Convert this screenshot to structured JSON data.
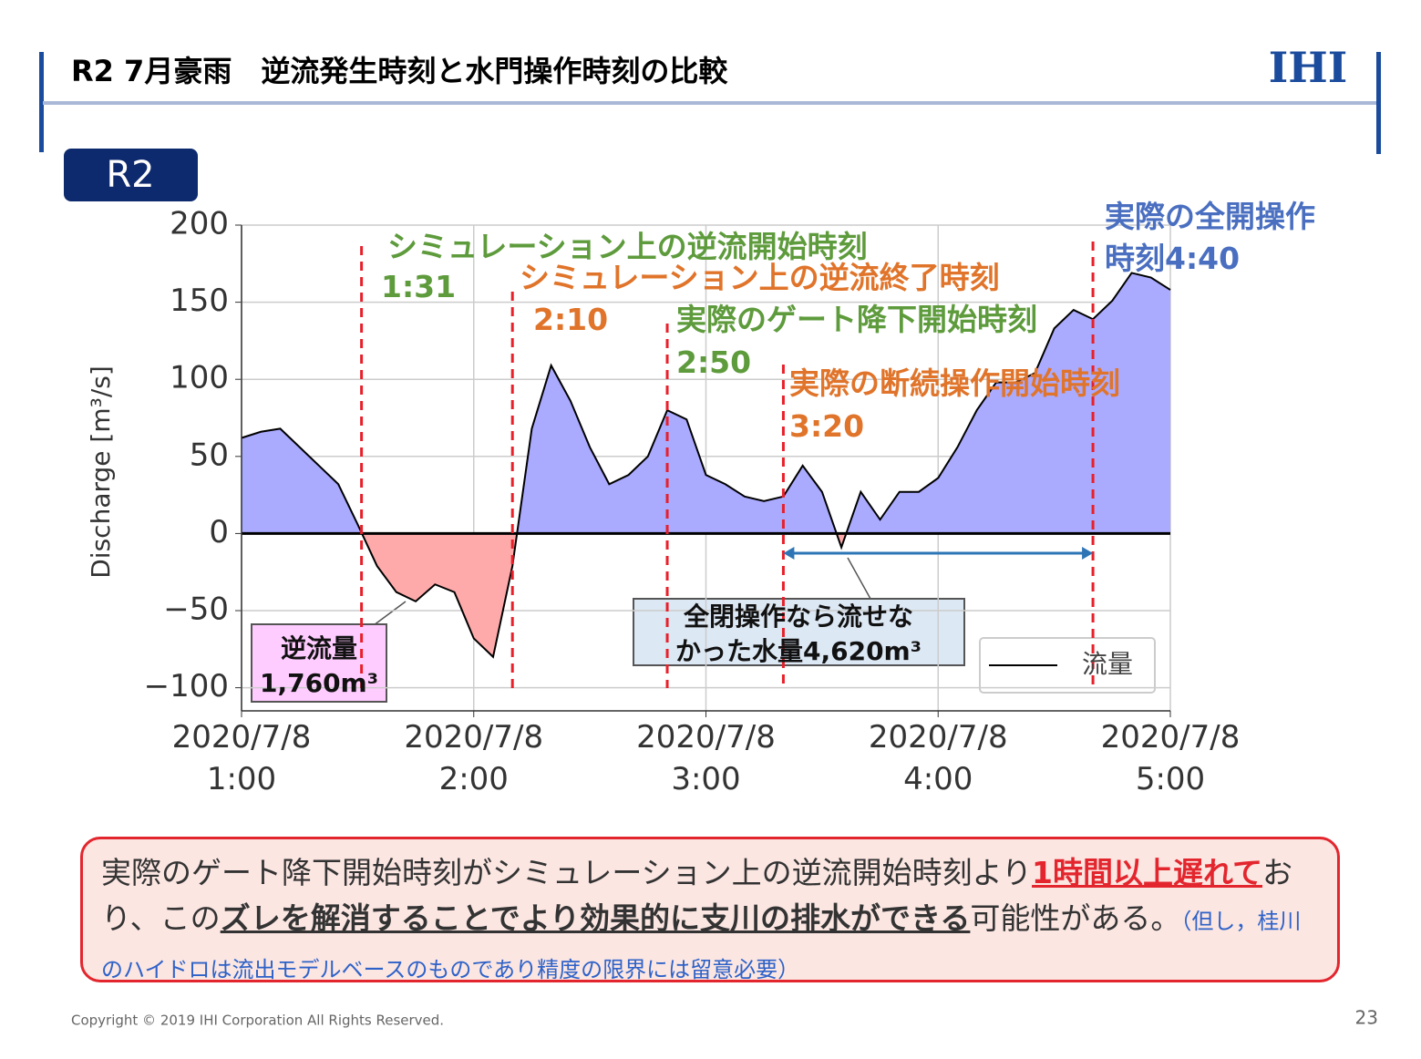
{
  "header": {
    "title": "R2 7月豪雨　逆流発生時刻と水門操作時刻の比較",
    "logo": "IHI",
    "badge": "R2"
  },
  "chart_data": {
    "type": "area-line",
    "y_label": "Discharge [m³/s]",
    "x": [
      "2020/7/8 1:00",
      "2020/7/8 1:05",
      "2020/7/8 1:10",
      "2020/7/8 1:15",
      "2020/7/8 1:20",
      "2020/7/8 1:25",
      "2020/7/8 1:30",
      "2020/7/8 1:35",
      "2020/7/8 1:40",
      "2020/7/8 1:45",
      "2020/7/8 1:50",
      "2020/7/8 1:55",
      "2020/7/8 2:00",
      "2020/7/8 2:05",
      "2020/7/8 2:10",
      "2020/7/8 2:15",
      "2020/7/8 2:20",
      "2020/7/8 2:25",
      "2020/7/8 2:30",
      "2020/7/8 2:35",
      "2020/7/8 2:40",
      "2020/7/8 2:45",
      "2020/7/8 2:50",
      "2020/7/8 2:55",
      "2020/7/8 3:00",
      "2020/7/8 3:05",
      "2020/7/8 3:10",
      "2020/7/8 3:15",
      "2020/7/8 3:20",
      "2020/7/8 3:25",
      "2020/7/8 3:30",
      "2020/7/8 3:35",
      "2020/7/8 3:40",
      "2020/7/8 3:45",
      "2020/7/8 3:50",
      "2020/7/8 3:55",
      "2020/7/8 4:00",
      "2020/7/8 4:05",
      "2020/7/8 4:10",
      "2020/7/8 4:15",
      "2020/7/8 4:20",
      "2020/7/8 4:25",
      "2020/7/8 4:30",
      "2020/7/8 4:35",
      "2020/7/8 4:40",
      "2020/7/8 4:45",
      "2020/7/8 4:50",
      "2020/7/8 4:55",
      "2020/7/8 5:00"
    ],
    "series": [
      {
        "name": "流量",
        "color": "#000000",
        "values": [
          62,
          66,
          68,
          56,
          44,
          32,
          6,
          -21,
          -38,
          -44,
          -33,
          -38,
          -68,
          -80,
          -21,
          68,
          109,
          86,
          56,
          32,
          38,
          50,
          80,
          74,
          38,
          32,
          24,
          21,
          24,
          44,
          27,
          -9,
          27,
          9,
          27,
          27,
          36,
          56,
          80,
          98,
          98,
          104,
          133,
          145,
          139,
          151,
          169,
          166,
          158
        ]
      }
    ],
    "fill_above": "#aaaaff",
    "fill_below": "#ffaaaa",
    "xlim": [
      "2020/7/8 1:00",
      "2020/7/8 5:00"
    ],
    "xticks": [
      "2020/7/8 1:00",
      "2020/7/8 2:00",
      "2020/7/8 3:00",
      "2020/7/8 4:00",
      "2020/7/8 5:00"
    ],
    "ylim": [
      -115,
      200
    ],
    "yticks": [
      {
        "value": -100,
        "label": "−100"
      },
      {
        "value": -50,
        "label": "−50"
      },
      0,
      50,
      100,
      150,
      200
    ],
    "grid": true,
    "annotations": [
      {
        "label": "シミュレーション上の逆流開始時刻",
        "time": "1:31",
        "x": "2020/7/8 1:31",
        "color": "#5e9b3c"
      },
      {
        "label": "シミュレーション上の逆流終了時刻",
        "time": "2:10",
        "x": "2020/7/8 2:10",
        "color": "#e0742a"
      },
      {
        "label": "実際のゲート降下開始時刻",
        "time": "2:50",
        "x": "2020/7/8 2:50",
        "color": "#5e9b3c"
      },
      {
        "label": "実際の断続操作開始時刻",
        "time": "3:20",
        "x": "2020/7/8 3:20",
        "color": "#e0742a"
      },
      {
        "label": "実際の全開操作時刻4:40",
        "x": "2020/7/8 4:40",
        "color": "#4a6fc0"
      }
    ],
    "line_color": "#e8202a",
    "arrow": {
      "from": "2020/7/8 3:20",
      "to": "2020/7/8 4:40",
      "color": "#2e75b6"
    },
    "callouts": [
      [
        "逆流量",
        "1,760m³"
      ],
      [
        "全閉操作なら流せな",
        "かった水量4,620m³"
      ]
    ]
  },
  "conclusion": [
    {
      "text": "実際のゲート降下開始時刻がシミュレーション上の逆流開始時刻より",
      "style": "normal"
    },
    {
      "text": "1時間以上遅れて",
      "style": "red"
    },
    {
      "text": "おり、この",
      "style": "normal"
    },
    {
      "text": "ズレを解消することでより効果的に支川の排水ができる",
      "style": "bold"
    },
    {
      "text": "可能性がある。",
      "style": "normal"
    },
    {
      "text": "（但し，桂川のハイドロは流出モデルベースのものであり精度の限界には留意必要）",
      "style": "note"
    }
  ],
  "footer": {
    "copyright": "Copyright © 2019 IHI Corporation All Rights Reserved.",
    "page": "23"
  }
}
